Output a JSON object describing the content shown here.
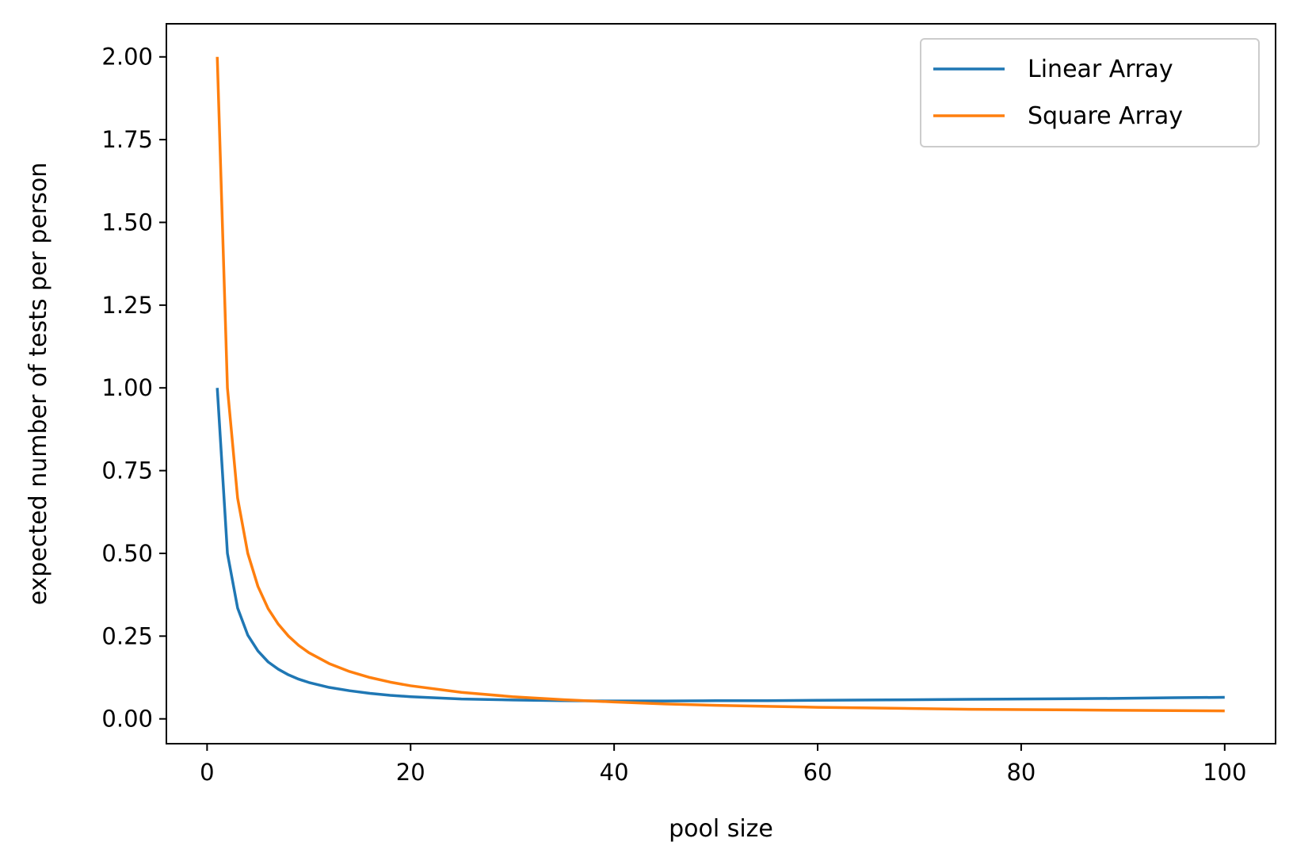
{
  "chart_data": {
    "type": "line",
    "title": "",
    "xlabel": "pool size",
    "ylabel": "expected number of tests per person",
    "xlim": [
      -4,
      105
    ],
    "ylim": [
      -0.075,
      2.1
    ],
    "xticks": [
      0,
      20,
      40,
      60,
      80,
      100
    ],
    "xtick_labels": [
      "0",
      "20",
      "40",
      "60",
      "80",
      "100"
    ],
    "yticks": [
      0.0,
      0.25,
      0.5,
      0.75,
      1.0,
      1.25,
      1.5,
      1.75,
      2.0
    ],
    "ytick_labels": [
      "0.00",
      "0.25",
      "0.50",
      "0.75",
      "1.00",
      "1.25",
      "1.50",
      "1.75",
      "2.00"
    ],
    "grid": false,
    "legend_position": "top-right",
    "x": [
      1,
      2,
      3,
      4,
      5,
      6,
      7,
      8,
      9,
      10,
      12,
      14,
      16,
      18,
      20,
      25,
      30,
      35,
      40,
      45,
      50,
      55,
      60,
      65,
      70,
      75,
      80,
      85,
      90,
      95,
      100
    ],
    "series": [
      {
        "name": "Linear Array",
        "color": "#1f77b4",
        "values": [
          1.0,
          0.5,
          0.335,
          0.253,
          0.205,
          0.172,
          0.15,
          0.133,
          0.12,
          0.11,
          0.095,
          0.085,
          0.077,
          0.071,
          0.067,
          0.06,
          0.057,
          0.055,
          0.054,
          0.054,
          0.055,
          0.055,
          0.056,
          0.057,
          0.058,
          0.059,
          0.06,
          0.061,
          0.062,
          0.064,
          0.065
        ]
      },
      {
        "name": "Square Array",
        "color": "#ff7f0e",
        "values": [
          2.0,
          1.0,
          0.667,
          0.5,
          0.4,
          0.333,
          0.286,
          0.25,
          0.222,
          0.2,
          0.167,
          0.143,
          0.125,
          0.111,
          0.1,
          0.08,
          0.067,
          0.058,
          0.051,
          0.045,
          0.041,
          0.038,
          0.035,
          0.033,
          0.031,
          0.029,
          0.028,
          0.027,
          0.026,
          0.025,
          0.024
        ]
      }
    ]
  }
}
